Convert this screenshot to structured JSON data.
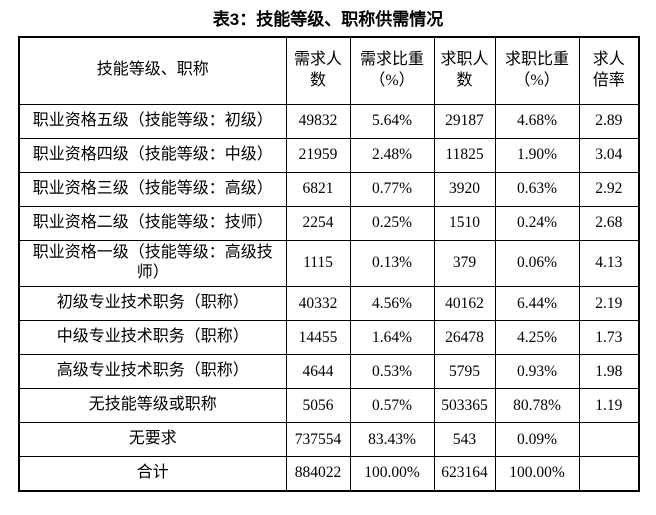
{
  "title": "表3：技能等级、职称供需情况",
  "colors": {
    "text": "#000000",
    "border": "#000000",
    "background": "#ffffff"
  },
  "table": {
    "headers": [
      "技能等级、职称",
      "需求人数",
      "需求比重（%）",
      "求职人数",
      "求职比重（%）",
      "求人倍率"
    ],
    "rows": [
      [
        "职业资格五级（技能等级：初级）",
        "49832",
        "5.64%",
        "29187",
        "4.68%",
        "2.89"
      ],
      [
        "职业资格四级（技能等级：中级）",
        "21959",
        "2.48%",
        "11825",
        "1.90%",
        "3.04"
      ],
      [
        "职业资格三级（技能等级：高级）",
        "6821",
        "0.77%",
        "3920",
        "0.63%",
        "2.92"
      ],
      [
        "职业资格二级（技能等级：技师）",
        "2254",
        "0.25%",
        "1510",
        "0.24%",
        "2.68"
      ],
      [
        "职业资格一级（技能等级：高级技师）",
        "1115",
        "0.13%",
        "379",
        "0.06%",
        "4.13"
      ],
      [
        "初级专业技术职务（职称）",
        "40332",
        "4.56%",
        "40162",
        "6.44%",
        "2.19"
      ],
      [
        "中级专业技术职务（职称）",
        "14455",
        "1.64%",
        "26478",
        "4.25%",
        "1.73"
      ],
      [
        "高级专业技术职务（职称）",
        "4644",
        "0.53%",
        "5795",
        "0.93%",
        "1.98"
      ],
      [
        "无技能等级或职称",
        "5056",
        "0.57%",
        "503365",
        "80.78%",
        "1.19"
      ],
      [
        "无要求",
        "737554",
        "83.43%",
        "543",
        "0.09%",
        ""
      ],
      [
        "合计",
        "884022",
        "100.00%",
        "623164",
        "100.00%",
        ""
      ]
    ]
  }
}
